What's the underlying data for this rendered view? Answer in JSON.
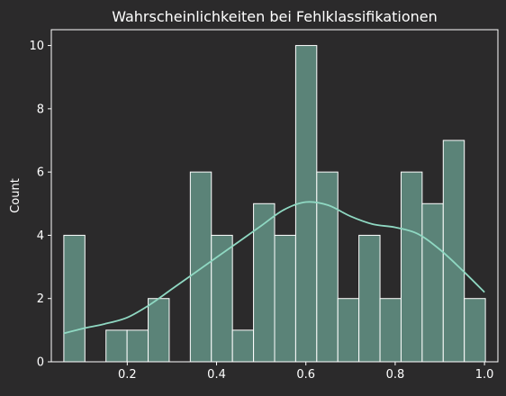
{
  "chart_data": {
    "type": "bar",
    "title": "Wahrscheinlichkeiten bei Fehlklassifikationen",
    "xlabel": "",
    "ylabel": "Count",
    "xlim": [
      0.03,
      1.03
    ],
    "ylim": [
      0,
      10.5
    ],
    "xticks": [
      0.2,
      0.4,
      0.6,
      0.8,
      1.0
    ],
    "xtick_labels": [
      "0.2",
      "0.4",
      "0.6",
      "0.8",
      "1.0"
    ],
    "yticks": [
      0,
      2,
      4,
      6,
      8,
      10
    ],
    "ytick_labels": [
      "0",
      "2",
      "4",
      "6",
      "8",
      "10"
    ],
    "bin_edges": [
      0.058,
      0.1052,
      0.1524,
      0.1996,
      0.2468,
      0.294,
      0.3412,
      0.3884,
      0.4356,
      0.4828,
      0.53,
      0.5772,
      0.6244,
      0.6716,
      0.7188,
      0.766,
      0.8132,
      0.8604,
      0.9076,
      0.9548,
      1.002
    ],
    "counts": [
      4,
      0,
      1,
      1,
      2,
      0,
      6,
      4,
      1,
      5,
      4,
      10,
      6,
      2,
      4,
      2,
      6,
      5,
      7,
      2
    ],
    "kde": {
      "x": [
        0.058,
        0.1,
        0.15,
        0.2,
        0.25,
        0.3,
        0.35,
        0.4,
        0.45,
        0.5,
        0.55,
        0.6,
        0.65,
        0.7,
        0.75,
        0.8,
        0.85,
        0.9,
        0.95,
        1.0
      ],
      "y": [
        0.9,
        1.05,
        1.2,
        1.4,
        1.8,
        2.3,
        2.8,
        3.3,
        3.8,
        4.3,
        4.8,
        5.05,
        4.95,
        4.6,
        4.35,
        4.25,
        4.05,
        3.55,
        2.9,
        2.2
      ]
    },
    "grid": false,
    "colors": {
      "background": "#2b2a2b",
      "bar_fill": "#5b8378",
      "bar_edge": "#ffffff",
      "kde_line": "#8fd8c2",
      "axes": "#ffffff",
      "text": "#ffffff"
    }
  }
}
